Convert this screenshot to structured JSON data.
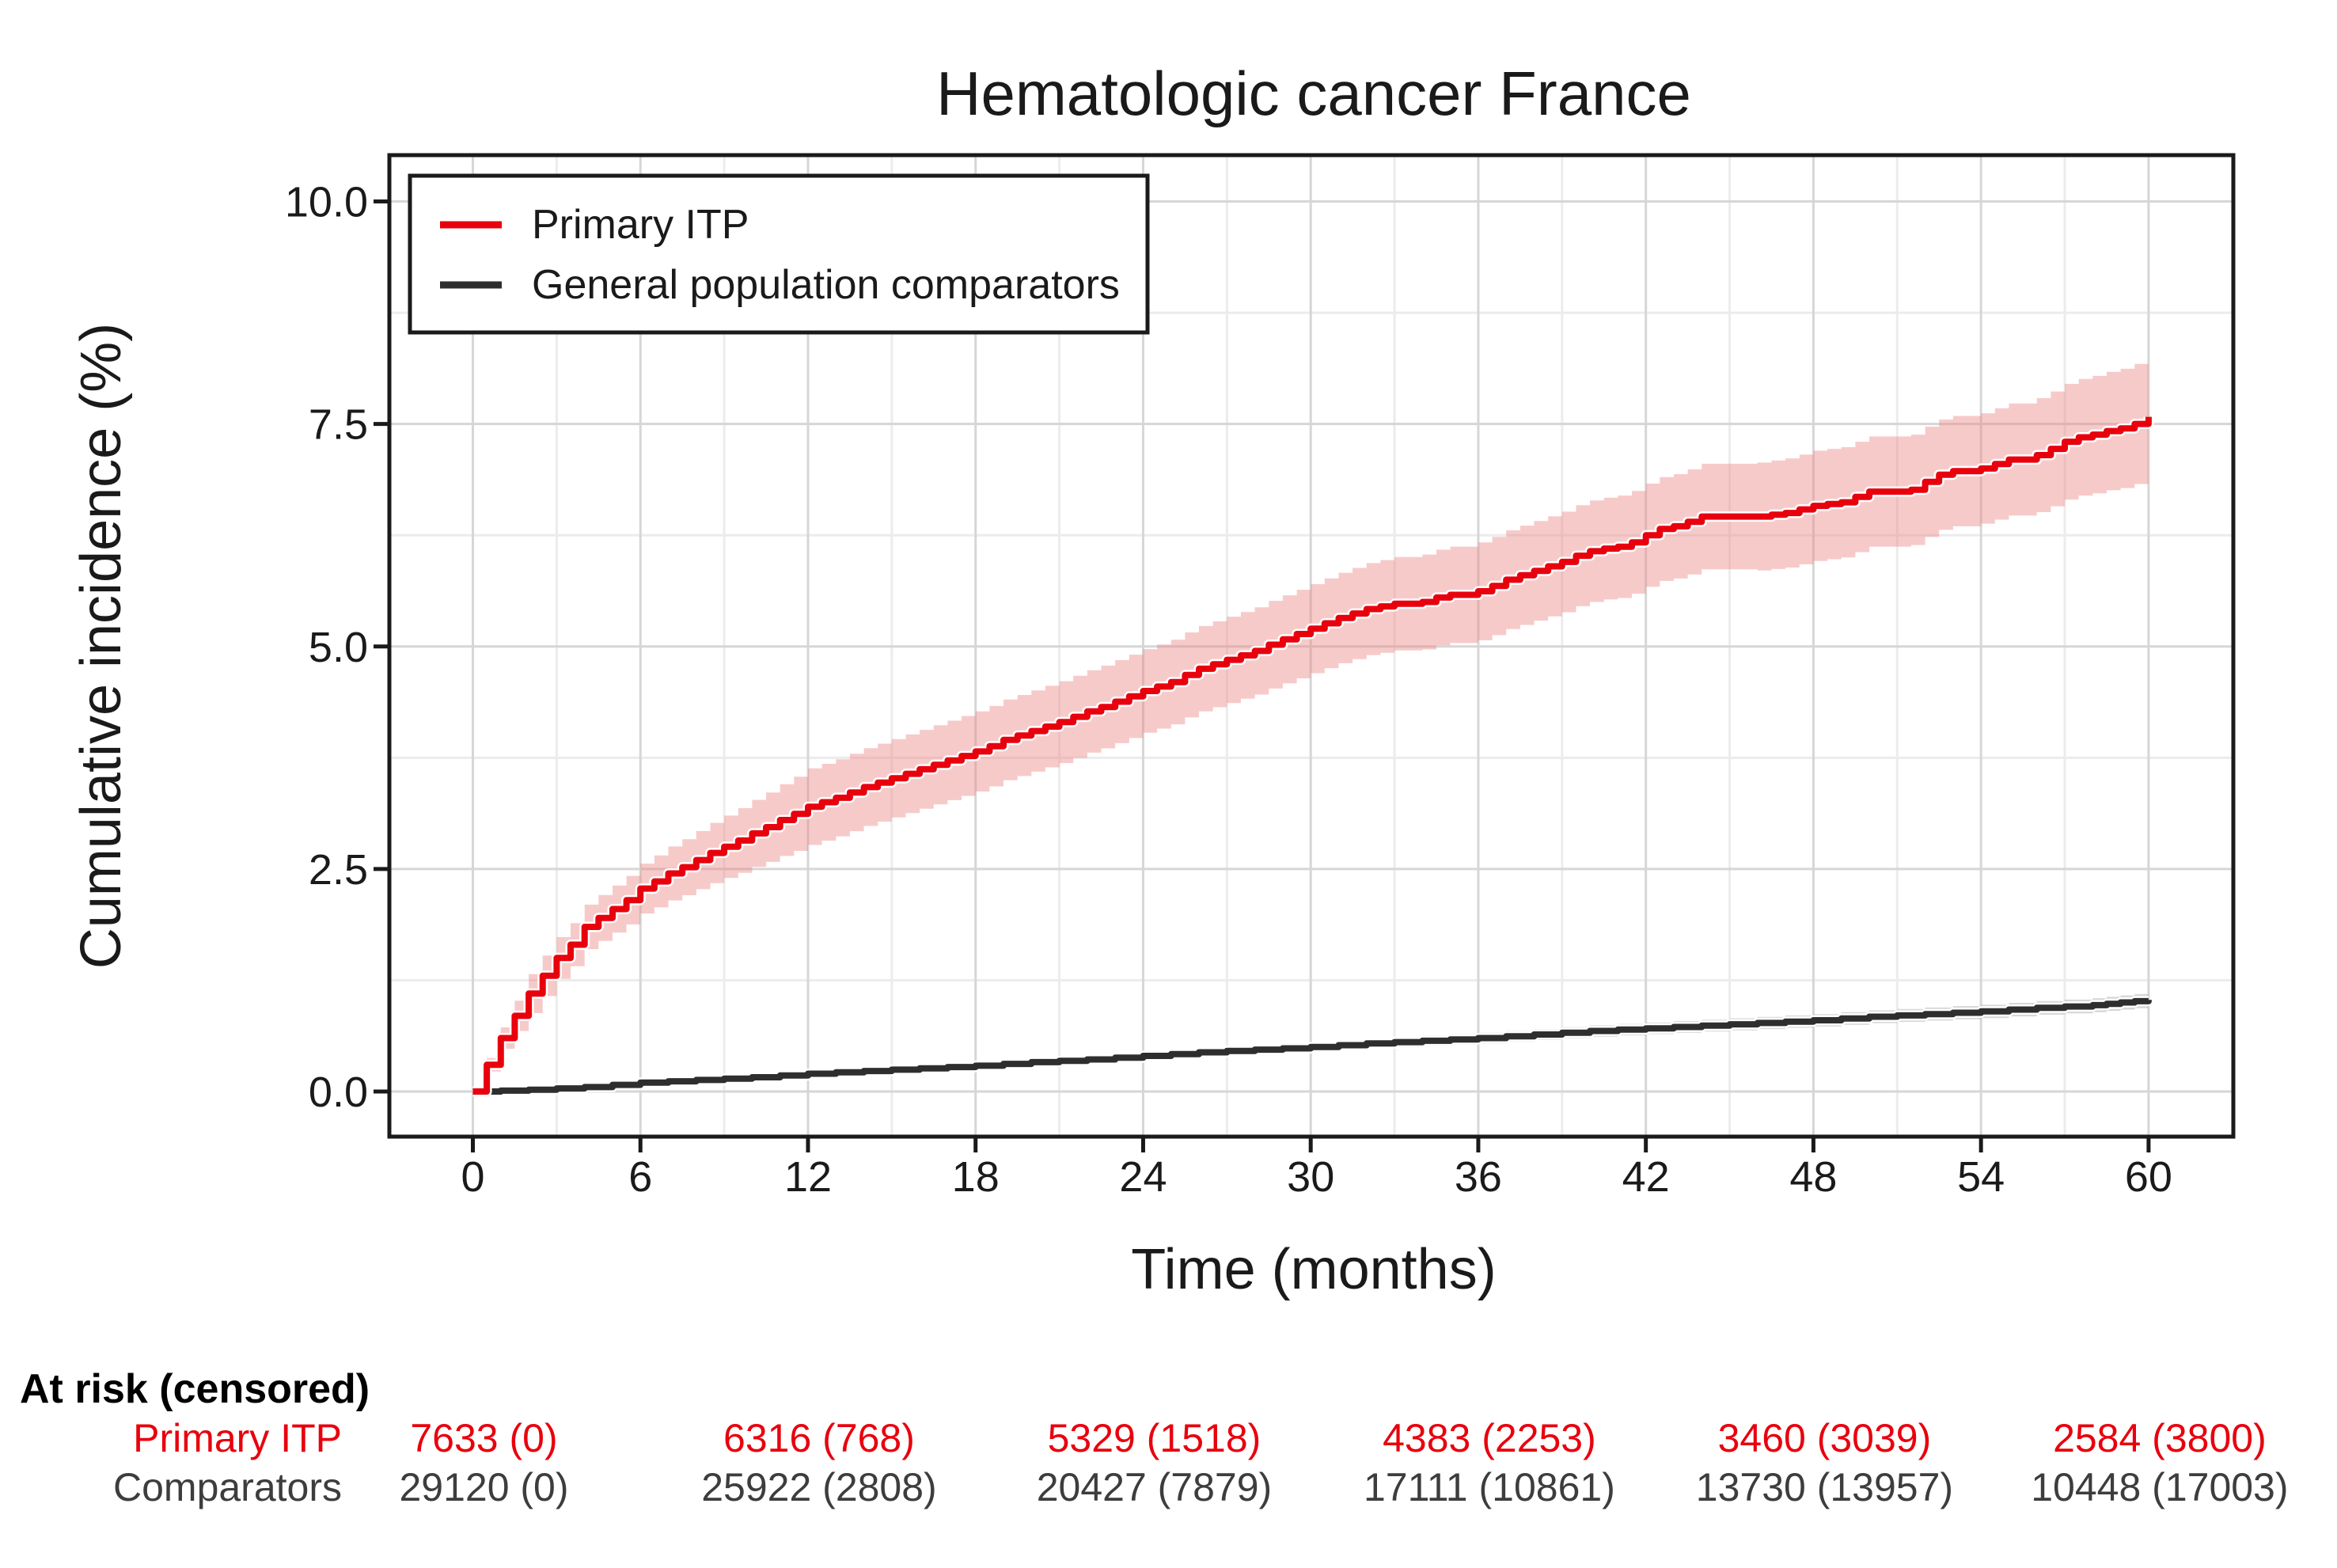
{
  "title": "Hematologic cancer France",
  "colors": {
    "primary_itp": "#e8000d",
    "primary_itp_band": "#ee8a8a",
    "comparator": "#2e2e2e",
    "comparator_band": "#a6a6a6",
    "axis_text": "#1a1a1a",
    "grid_major": "#d6d6d6",
    "grid_minor": "#ececec"
  },
  "axes": {
    "x_label": "Time (months)",
    "y_label": "Cumulative incidence (%)",
    "x_tick_labels": [
      "0",
      "6",
      "12",
      "18",
      "24",
      "30",
      "36",
      "42",
      "48",
      "54",
      "60"
    ],
    "x_tick_values": [
      0,
      6,
      12,
      18,
      24,
      30,
      36,
      42,
      48,
      54,
      60
    ],
    "y_tick_labels": [
      "0.0",
      "2.5",
      "5.0",
      "7.5",
      "10.0"
    ],
    "y_tick_values": [
      0,
      2.5,
      5,
      7.5,
      10
    ]
  },
  "legend": {
    "entries": [
      {
        "label": "Primary ITP",
        "color": "#e8000d"
      },
      {
        "label": "General population comparators",
        "color": "#2e2e2e"
      }
    ]
  },
  "risk_table": {
    "header": "At risk (censored)",
    "months": [
      0,
      12,
      24,
      36,
      48,
      60
    ],
    "rows": [
      {
        "label": "Primary ITP",
        "color": "#e8000d",
        "values": [
          "7633 (0)",
          "6316 (768)",
          "5329 (1518)",
          "4383 (2253)",
          "3460 (3039)",
          "2584 (3800)"
        ]
      },
      {
        "label": "Comparators",
        "color": "#3d3d3d",
        "values": [
          "29120 (0)",
          "25922 (2808)",
          "20427 (7879)",
          "17111 (10861)",
          "13730 (13957)",
          "10448 (17003)"
        ]
      }
    ]
  },
  "chart_data": {
    "type": "line",
    "subtype": "cumulative-incidence-step-curves-with-confidence-bands",
    "title": "Hematologic cancer France",
    "xlabel": "Time (months)",
    "ylabel": "Cumulative incidence (%)",
    "xlim": [
      0,
      60
    ],
    "ylim": [
      0,
      10
    ],
    "x_ticks": [
      0,
      6,
      12,
      18,
      24,
      30,
      36,
      42,
      48,
      54,
      60
    ],
    "y_ticks": [
      0,
      2.5,
      5,
      7.5,
      10
    ],
    "grid": true,
    "legend_position": "top-left-inside",
    "units": "percent",
    "series": [
      {
        "name": "Primary ITP",
        "color": "#e8000d",
        "band_color": "#ee8a8a",
        "points": [
          [
            0,
            0
          ],
          [
            0.5,
            0.3
          ],
          [
            1,
            0.6
          ],
          [
            1.5,
            0.85
          ],
          [
            2,
            1.1
          ],
          [
            2.5,
            1.3
          ],
          [
            3,
            1.5
          ],
          [
            3.5,
            1.65
          ],
          [
            4,
            1.85
          ],
          [
            4.5,
            1.95
          ],
          [
            5,
            2.05
          ],
          [
            5.5,
            2.15
          ],
          [
            6,
            2.28
          ],
          [
            6.5,
            2.36
          ],
          [
            7,
            2.45
          ],
          [
            7.5,
            2.52
          ],
          [
            8,
            2.6
          ],
          [
            8.5,
            2.68
          ],
          [
            9,
            2.75
          ],
          [
            9.5,
            2.82
          ],
          [
            10,
            2.9
          ],
          [
            10.5,
            2.97
          ],
          [
            11,
            3.05
          ],
          [
            11.5,
            3.12
          ],
          [
            12,
            3.2
          ],
          [
            12.5,
            3.25
          ],
          [
            13,
            3.3
          ],
          [
            13.5,
            3.36
          ],
          [
            14,
            3.42
          ],
          [
            14.5,
            3.47
          ],
          [
            15,
            3.52
          ],
          [
            15.5,
            3.57
          ],
          [
            16,
            3.62
          ],
          [
            16.5,
            3.67
          ],
          [
            17,
            3.72
          ],
          [
            17.5,
            3.77
          ],
          [
            18,
            3.82
          ],
          [
            18.5,
            3.88
          ],
          [
            19,
            3.95
          ],
          [
            19.5,
            4.0
          ],
          [
            20,
            4.05
          ],
          [
            20.5,
            4.1
          ],
          [
            21,
            4.15
          ],
          [
            21.5,
            4.21
          ],
          [
            22,
            4.27
          ],
          [
            22.5,
            4.32
          ],
          [
            23,
            4.38
          ],
          [
            23.5,
            4.44
          ],
          [
            24,
            4.5
          ],
          [
            24.5,
            4.55
          ],
          [
            25,
            4.6
          ],
          [
            25.5,
            4.68
          ],
          [
            26,
            4.75
          ],
          [
            26.5,
            4.8
          ],
          [
            27,
            4.85
          ],
          [
            27.5,
            4.9
          ],
          [
            28,
            4.95
          ],
          [
            28.5,
            5.02
          ],
          [
            29,
            5.08
          ],
          [
            29.5,
            5.14
          ],
          [
            30,
            5.2
          ],
          [
            30.5,
            5.26
          ],
          [
            31,
            5.32
          ],
          [
            31.5,
            5.37
          ],
          [
            32,
            5.42
          ],
          [
            32.5,
            5.45
          ],
          [
            33,
            5.48
          ],
          [
            34,
            5.5
          ],
          [
            34.5,
            5.55
          ],
          [
            35,
            5.58
          ],
          [
            36,
            5.62
          ],
          [
            36.5,
            5.68
          ],
          [
            37,
            5.75
          ],
          [
            37.5,
            5.8
          ],
          [
            38,
            5.85
          ],
          [
            38.5,
            5.9
          ],
          [
            39,
            5.95
          ],
          [
            39.5,
            6.02
          ],
          [
            40,
            6.07
          ],
          [
            40.5,
            6.1
          ],
          [
            41,
            6.12
          ],
          [
            41.5,
            6.17
          ],
          [
            42,
            6.25
          ],
          [
            42.5,
            6.32
          ],
          [
            43,
            6.35
          ],
          [
            43.5,
            6.4
          ],
          [
            44,
            6.46
          ],
          [
            46,
            6.46
          ],
          [
            46.5,
            6.48
          ],
          [
            47,
            6.5
          ],
          [
            47.5,
            6.54
          ],
          [
            48,
            6.58
          ],
          [
            48.5,
            6.6
          ],
          [
            49,
            6.62
          ],
          [
            49.5,
            6.68
          ],
          [
            50,
            6.74
          ],
          [
            51.5,
            6.76
          ],
          [
            52,
            6.85
          ],
          [
            52.5,
            6.93
          ],
          [
            53,
            6.97
          ],
          [
            54,
            7.0
          ],
          [
            54.5,
            7.05
          ],
          [
            55,
            7.1
          ],
          [
            56,
            7.15
          ],
          [
            56.5,
            7.22
          ],
          [
            57,
            7.3
          ],
          [
            57.5,
            7.35
          ],
          [
            58,
            7.38
          ],
          [
            58.5,
            7.42
          ],
          [
            59,
            7.45
          ],
          [
            59.5,
            7.5
          ],
          [
            60,
            7.58
          ]
        ],
        "band_halfwidth_anchors": [
          [
            0,
            0.03
          ],
          [
            1,
            0.12
          ],
          [
            2,
            0.22
          ],
          [
            4,
            0.25
          ],
          [
            6,
            0.28
          ],
          [
            9,
            0.35
          ],
          [
            12,
            0.43
          ],
          [
            18,
            0.45
          ],
          [
            24,
            0.47
          ],
          [
            30,
            0.5
          ],
          [
            36,
            0.55
          ],
          [
            42,
            0.58
          ],
          [
            48,
            0.62
          ],
          [
            54,
            0.62
          ],
          [
            60,
            0.68
          ]
        ]
      },
      {
        "name": "General population comparators",
        "color": "#2e2e2e",
        "band_color": "#a6a6a6",
        "points": [
          [
            0,
            0
          ],
          [
            2,
            0.02
          ],
          [
            4,
            0.05
          ],
          [
            6,
            0.1
          ],
          [
            8,
            0.13
          ],
          [
            10,
            0.16
          ],
          [
            12,
            0.2
          ],
          [
            14,
            0.23
          ],
          [
            16,
            0.26
          ],
          [
            18,
            0.29
          ],
          [
            20,
            0.33
          ],
          [
            22,
            0.36
          ],
          [
            24,
            0.4
          ],
          [
            26,
            0.44
          ],
          [
            28,
            0.47
          ],
          [
            30,
            0.5
          ],
          [
            32,
            0.54
          ],
          [
            34,
            0.57
          ],
          [
            36,
            0.6
          ],
          [
            38,
            0.64
          ],
          [
            40,
            0.68
          ],
          [
            42,
            0.71
          ],
          [
            44,
            0.74
          ],
          [
            46,
            0.77
          ],
          [
            48,
            0.8
          ],
          [
            50,
            0.84
          ],
          [
            52,
            0.87
          ],
          [
            54,
            0.9
          ],
          [
            56,
            0.94
          ],
          [
            58,
            0.97
          ],
          [
            59,
            1.0
          ],
          [
            60,
            1.03
          ]
        ],
        "band_halfwidth_anchors": [
          [
            0,
            0.01
          ],
          [
            6,
            0.03
          ],
          [
            12,
            0.04
          ],
          [
            24,
            0.05
          ],
          [
            36,
            0.06
          ],
          [
            48,
            0.07
          ],
          [
            60,
            0.08
          ]
        ]
      }
    ]
  }
}
